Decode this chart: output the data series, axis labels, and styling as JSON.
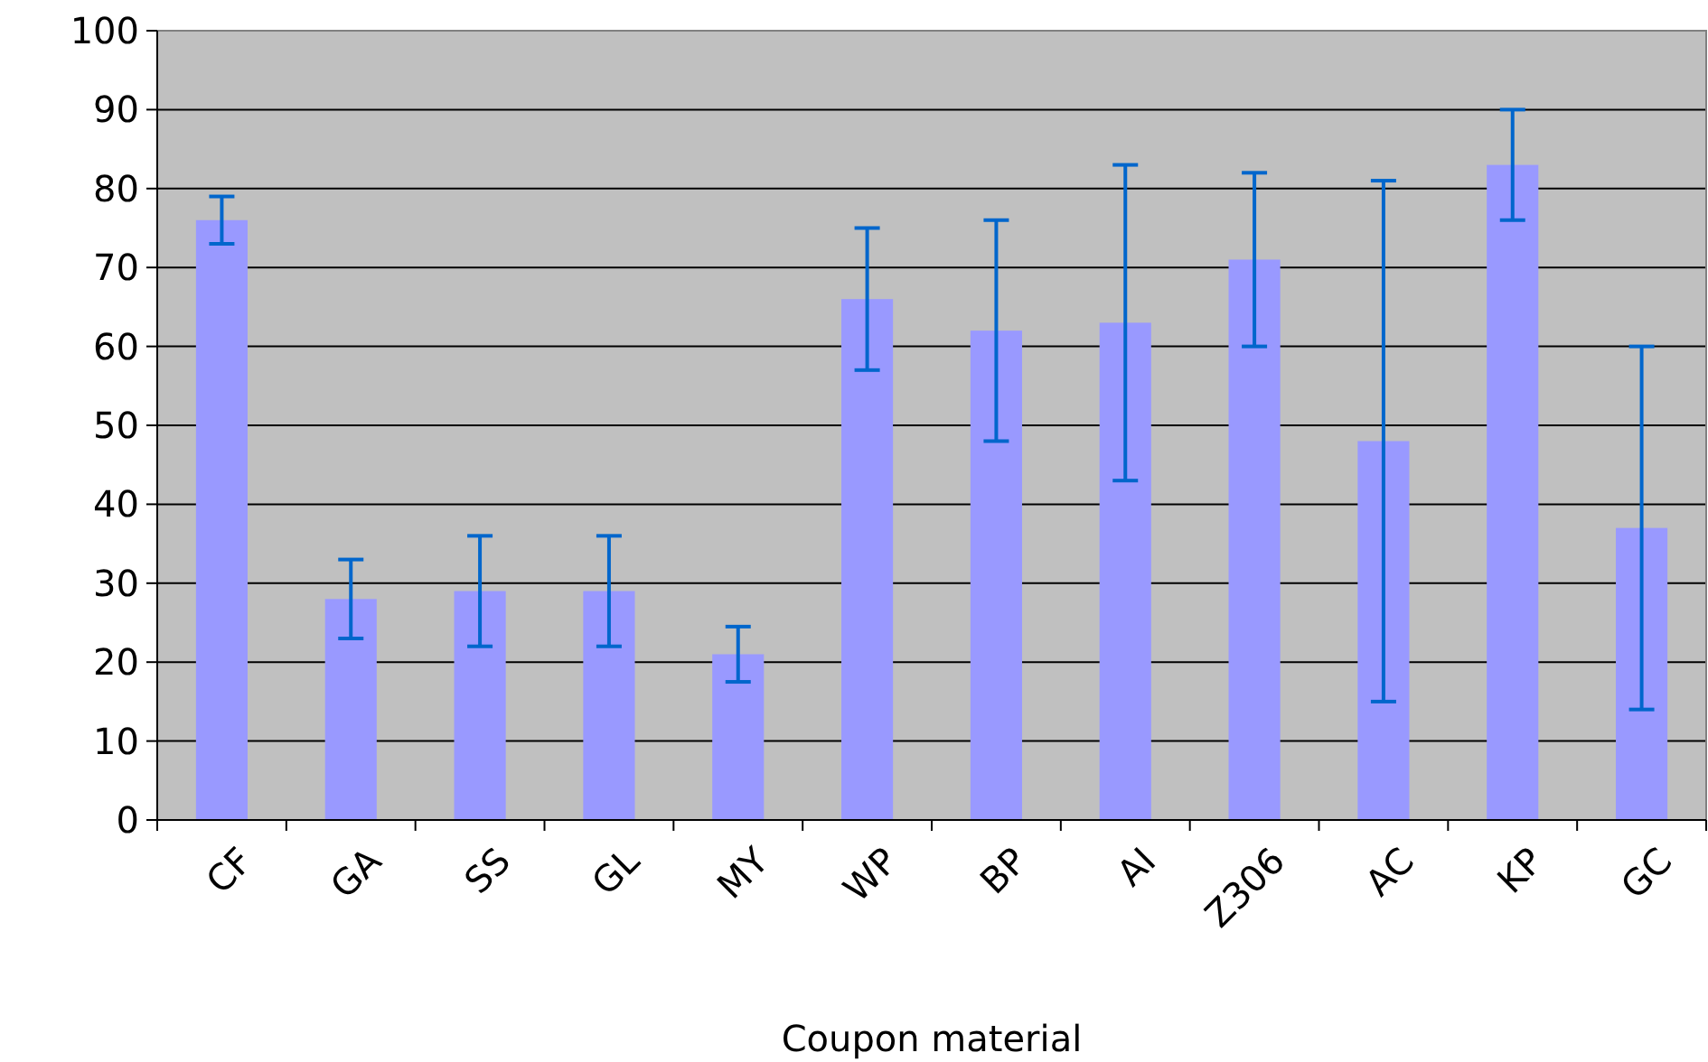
{
  "chart_data": {
    "type": "bar",
    "xlabel": "Coupon material",
    "categories": [
      "CF",
      "GA",
      "SS",
      "GL",
      "MY",
      "WP",
      "BP",
      "AI",
      "Z306",
      "AC",
      "KP",
      "GC"
    ],
    "values": [
      76,
      28,
      29,
      29,
      21,
      66,
      62,
      63,
      71,
      48,
      83,
      37
    ],
    "errors": [
      3,
      5,
      7,
      7,
      3.5,
      9,
      14,
      20,
      11,
      33,
      7,
      23
    ],
    "color": "#9999ff",
    "ylim": [
      0,
      100
    ],
    "yticks": [
      0,
      10,
      20,
      30,
      40,
      50,
      60,
      70,
      80,
      90,
      100
    ],
    "grid": "y"
  }
}
